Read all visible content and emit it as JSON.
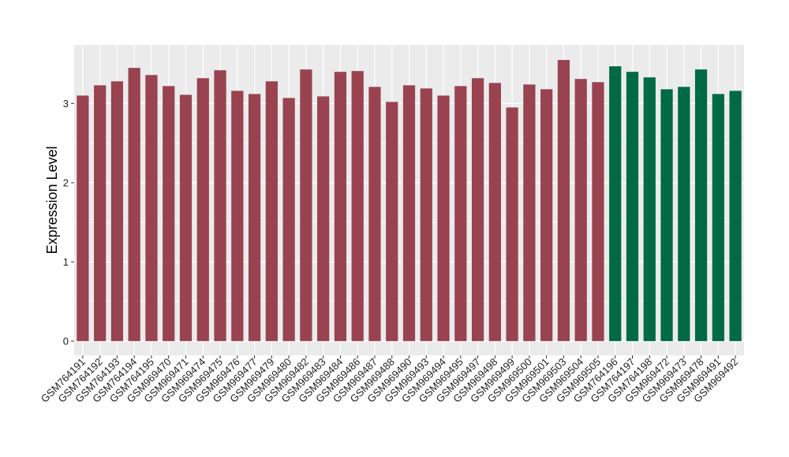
{
  "chart_data": {
    "type": "bar",
    "title": "",
    "xlabel": "",
    "ylabel": "Expression Level",
    "ylim": [
      -0.18,
      3.74
    ],
    "yticks": [
      0,
      1,
      2,
      3
    ],
    "grid": true,
    "legend": "none",
    "colors": {
      "group_a": "#9A4350",
      "group_b": "#006A45",
      "panel_bg": "#EBEBEB",
      "grid": "#FFFFFF"
    },
    "categories": [
      "GSM764191",
      "GSM764192",
      "GSM764193",
      "GSM764194",
      "GSM764195",
      "GSM969470",
      "GSM969471",
      "GSM969474",
      "GSM969475",
      "GSM969476",
      "GSM969477",
      "GSM969479",
      "GSM969480",
      "GSM969482",
      "GSM969483",
      "GSM969484",
      "GSM969486",
      "GSM969487",
      "GSM969488",
      "GSM969490",
      "GSM969493",
      "GSM969494",
      "GSM969495",
      "GSM969497",
      "GSM969498",
      "GSM969499",
      "GSM969500",
      "GSM969501",
      "GSM969503",
      "GSM969504",
      "GSM969505",
      "GSM764196",
      "GSM764197",
      "GSM764198",
      "GSM969472",
      "GSM969473",
      "GSM969478",
      "GSM969491",
      "GSM969492"
    ],
    "values": [
      3.1,
      3.23,
      3.28,
      3.45,
      3.36,
      3.22,
      3.11,
      3.32,
      3.42,
      3.16,
      3.12,
      3.28,
      3.07,
      3.43,
      3.09,
      3.4,
      3.41,
      3.21,
      3.02,
      3.23,
      3.19,
      3.1,
      3.22,
      3.32,
      3.26,
      2.95,
      3.24,
      3.18,
      3.55,
      3.31,
      3.27,
      3.47,
      3.4,
      3.33,
      3.18,
      3.21,
      3.43,
      3.12,
      3.16
    ],
    "groups": [
      "a",
      "a",
      "a",
      "a",
      "a",
      "a",
      "a",
      "a",
      "a",
      "a",
      "a",
      "a",
      "a",
      "a",
      "a",
      "a",
      "a",
      "a",
      "a",
      "a",
      "a",
      "a",
      "a",
      "a",
      "a",
      "a",
      "a",
      "a",
      "a",
      "a",
      "a",
      "b",
      "b",
      "b",
      "b",
      "b",
      "b",
      "b",
      "b"
    ]
  }
}
